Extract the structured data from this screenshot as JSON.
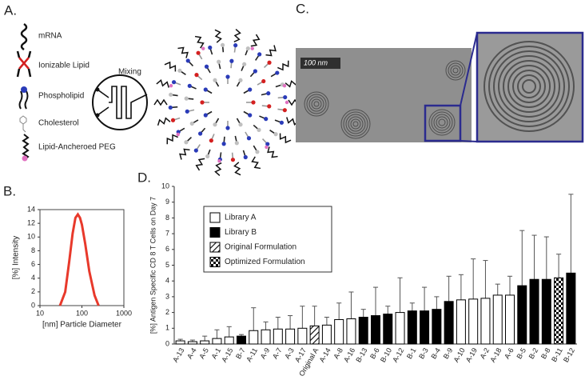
{
  "panels": {
    "a": {
      "label": "A.",
      "components": [
        "mRNA",
        "Ionizable Lipid",
        "Phospholipid",
        "Cholesterol",
        "Lipid-Ancheroed PEG"
      ],
      "mixing": "Mixing"
    },
    "c": {
      "label": "C.",
      "scale_bar": "100 nm"
    }
  },
  "chart_data": [
    {
      "type": "line",
      "label": "B.",
      "xlabel": "[nm] Particle Diameter",
      "ylabel": "[%] Intensity",
      "x": [
        30,
        40,
        50,
        60,
        70,
        80,
        90,
        100,
        120,
        150,
        200,
        250
      ],
      "series": [
        {
          "color": "#e8392b",
          "values": [
            0,
            2,
            6.5,
            10.5,
            12.8,
            13.3,
            12.8,
            11.8,
            9,
            5,
            1.5,
            0
          ]
        }
      ],
      "xlim": [
        10,
        1000
      ],
      "xticks": [
        10,
        100,
        1000
      ],
      "log_x": true,
      "ylim": [
        0,
        14
      ],
      "yticks": [
        0,
        2,
        4,
        6,
        8,
        10,
        12,
        14
      ]
    },
    {
      "type": "bar",
      "label": "D.",
      "ylabel": "[%] Antigen Specific CD 8 T Cells on Day 7",
      "categories": [
        "A-13",
        "A-4",
        "A-5",
        "A-1",
        "A-15",
        "B-7",
        "A-11",
        "A-9",
        "A-7",
        "A-3",
        "A-17",
        "Original A",
        "A-14",
        "A-8",
        "A-16",
        "B-13",
        "B-6",
        "B-10",
        "A-12",
        "B-1",
        "B-3",
        "B-4",
        "B-9",
        "A-10",
        "A-19",
        "A-2",
        "A-18",
        "A-6",
        "B-5",
        "B-2",
        "B-8",
        "B-11",
        "B-12"
      ],
      "values": [
        0.2,
        0.15,
        0.2,
        0.35,
        0.45,
        0.5,
        0.85,
        0.9,
        0.95,
        0.95,
        1.0,
        1.15,
        1.2,
        1.55,
        1.6,
        1.7,
        1.8,
        1.9,
        2.0,
        2.1,
        2.1,
        2.2,
        2.7,
        2.8,
        2.85,
        2.9,
        3.1,
        3.1,
        3.7,
        4.1,
        4.1,
        4.2,
        4.5
      ],
      "errors": [
        0.1,
        0.1,
        0.3,
        0.55,
        0.65,
        0.1,
        1.45,
        0.5,
        0.75,
        0.85,
        1.4,
        1.25,
        0.5,
        1.05,
        1.7,
        0.5,
        1.8,
        0.5,
        2.2,
        0.5,
        1.5,
        0.8,
        1.6,
        1.6,
        2.55,
        2.4,
        0.7,
        1.2,
        3.5,
        2.8,
        2.7,
        1.5,
        5.0
      ],
      "group": [
        0,
        0,
        0,
        0,
        0,
        1,
        0,
        0,
        0,
        0,
        0,
        2,
        0,
        0,
        0,
        1,
        1,
        1,
        0,
        1,
        1,
        1,
        1,
        0,
        0,
        0,
        0,
        0,
        1,
        1,
        1,
        3,
        1
      ],
      "legend": [
        {
          "name": "Library A",
          "fill": "white"
        },
        {
          "name": "Library B",
          "fill": "black"
        },
        {
          "name": "Original Formulation",
          "fill": "hatch"
        },
        {
          "name": "Optimized Formulation",
          "fill": "checker"
        }
      ],
      "ylim": [
        0,
        10
      ],
      "yticks": [
        0,
        1,
        2,
        3,
        4,
        5,
        6,
        7,
        8,
        9,
        10
      ]
    }
  ]
}
